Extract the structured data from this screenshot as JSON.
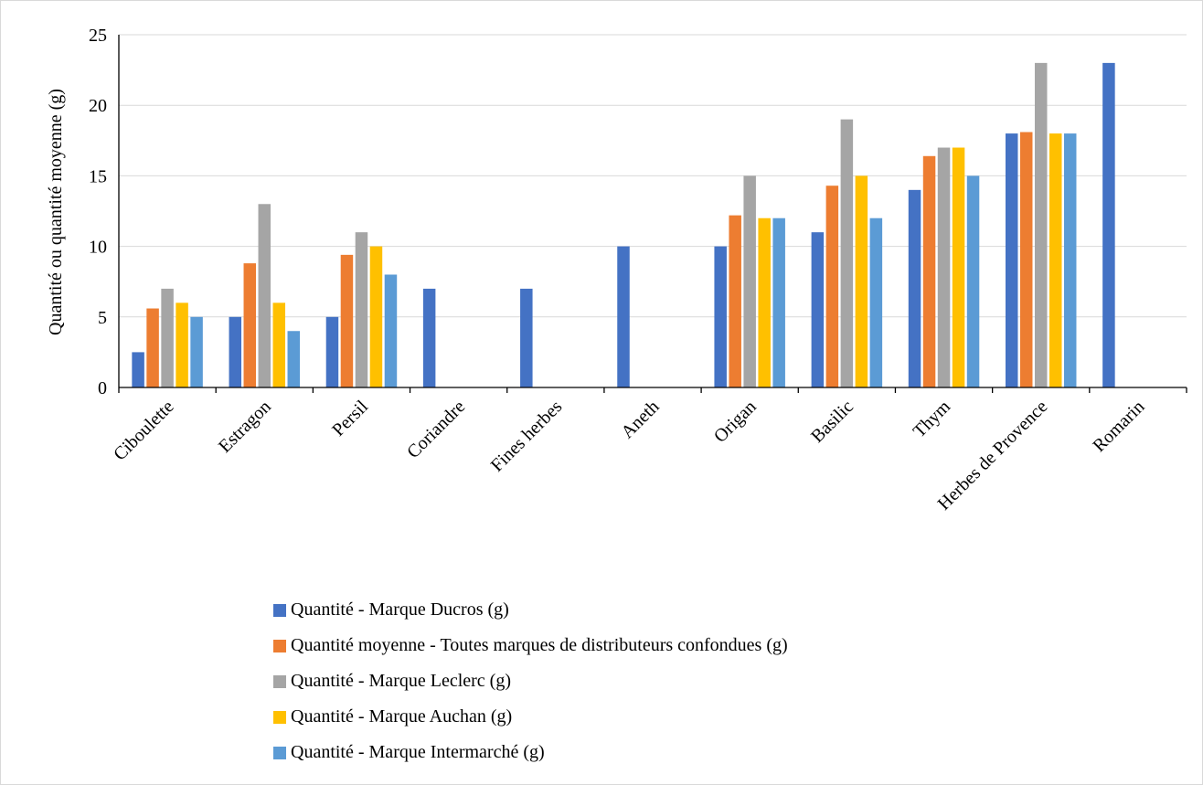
{
  "chart_data": {
    "type": "bar",
    "title": "",
    "xlabel": "",
    "ylabel": "Quantité ou quantité moyenne (g)",
    "ylim": [
      0,
      25
    ],
    "yticks": [
      0,
      5,
      10,
      15,
      20,
      25
    ],
    "grid": true,
    "legend_position": "bottom",
    "categories": [
      "Ciboulette",
      "Estragon",
      "Persil",
      "Coriandre",
      "Fines herbes",
      "Aneth",
      "Origan",
      "Basilic",
      "Thym",
      "Herbes de Provence",
      "Romarin"
    ],
    "series": [
      {
        "name": "Quantité - Marque Ducros (g)",
        "color": "#4472C4",
        "values": [
          2.5,
          5,
          5,
          7,
          7,
          10,
          10,
          11,
          14,
          18,
          23
        ]
      },
      {
        "name": "Quantité moyenne - Toutes marques de distributeurs confondues (g)",
        "color": "#ED7D31",
        "values": [
          5.6,
          8.8,
          9.4,
          null,
          null,
          null,
          12.2,
          14.3,
          16.4,
          18.1,
          null
        ]
      },
      {
        "name": "Quantité - Marque Leclerc (g)",
        "color": "#A5A5A5",
        "values": [
          7,
          13,
          11,
          null,
          null,
          null,
          15,
          19,
          17,
          23,
          null
        ]
      },
      {
        "name": "Quantité - Marque Auchan (g)",
        "color": "#FFC000",
        "values": [
          6,
          6,
          10,
          null,
          null,
          null,
          12,
          15,
          17,
          18,
          null
        ]
      },
      {
        "name": "Quantité - Marque Intermarché (g)",
        "color": "#5B9BD5",
        "values": [
          5,
          4,
          8,
          null,
          null,
          null,
          12,
          12,
          15,
          18,
          null
        ]
      }
    ]
  }
}
